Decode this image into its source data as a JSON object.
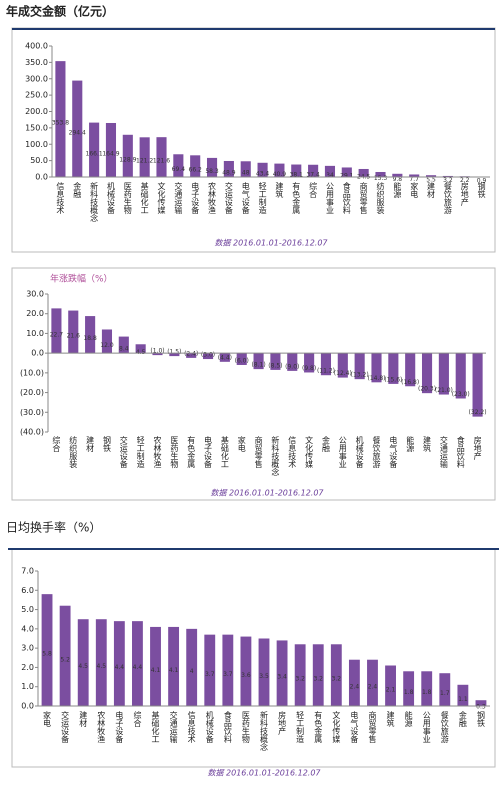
{
  "chart_data": [
    {
      "type": "bar",
      "title": "年成交金额（亿元）",
      "note": "数据 2016.01.01-2016.12.07",
      "color": "#7b4ea0",
      "categories": [
        "信息技术",
        "金融",
        "新科技概念",
        "机械设备",
        "医药生物",
        "基础化工",
        "文化传媒",
        "交通运输",
        "电子设备",
        "农林牧渔",
        "交运设备",
        "电气设备",
        "轻工制造",
        "建筑",
        "有色金属",
        "综合",
        "公用事业",
        "食品饮料",
        "商贸零售",
        "纺织服装",
        "能源",
        "家电",
        "建材",
        "餐饮旅游",
        "房地产",
        "钢铁"
      ],
      "values": [
        353.8,
        294.4,
        166.1,
        164.9,
        128.9,
        121.2,
        121.6,
        69.4,
        66.2,
        58.3,
        48.9,
        48.0,
        43.4,
        40.9,
        38.1,
        37.4,
        34.0,
        29.1,
        24.5,
        15.3,
        9.8,
        7.7,
        5.5,
        3.2,
        2.2,
        0.9
      ],
      "ylim": [
        0,
        400
      ],
      "yticks": [
        {
          "value": 0,
          "label": "0.0"
        },
        {
          "value": 50,
          "label": "50.0"
        },
        {
          "value": 100,
          "label": "100.0"
        },
        {
          "value": 150,
          "label": "150.0"
        },
        {
          "value": 200,
          "label": "200.0"
        },
        {
          "value": 250,
          "label": "250.0"
        },
        {
          "value": 300,
          "label": "300.0"
        },
        {
          "value": 350,
          "label": "350.0"
        },
        {
          "value": 400,
          "label": "400.0"
        }
      ]
    },
    {
      "type": "bar",
      "title": "年涨跌幅（%）",
      "note": "数据 2016.01.01-2016.12.07",
      "color": "#7b4ea0",
      "negative_color": "#e00000",
      "categories": [
        "综合",
        "纺织服装",
        "建材",
        "钢铁",
        "交运设备",
        "轻工制造",
        "农林牧渔",
        "医药生物",
        "有色金属",
        "电子设备",
        "基础化工",
        "家电",
        "商贸零售",
        "新科技概念",
        "信息技术",
        "文化传媒",
        "金融",
        "公用事业",
        "机械设备",
        "餐饮旅游",
        "电气设备",
        "能源",
        "建筑",
        "交通运输",
        "食品饮料",
        "房地产"
      ],
      "values": [
        22.7,
        21.6,
        18.8,
        12.0,
        8.4,
        4.5,
        -1.0,
        -1.5,
        -2.4,
        -3.0,
        -4.4,
        -6.0,
        -8.1,
        -8.5,
        -9.0,
        -9.8,
        -11.2,
        -12.4,
        -13.2,
        -14.8,
        -15.6,
        -16.8,
        -20.3,
        -21.0,
        -23.0,
        -32.2
      ],
      "value_labels": [
        "22.7",
        "21.6",
        "18.8",
        "12.0",
        "8.4",
        "4.5",
        "(1.0)",
        "(1.5)",
        "(2.4)",
        "(3.0)",
        "(4.4)",
        "(6.0)",
        "(8.1)",
        "(8.5)",
        "(9.0)",
        "(9.8)",
        "(11.2)",
        "(12.4)",
        "(13.2)",
        "(14.8)",
        "(15.6)",
        "(16.8)",
        "(20.3)",
        "(21.0)",
        "(23.0)",
        "(32.2)"
      ],
      "ylim": [
        -40,
        30
      ],
      "yticks": [
        {
          "value": 30,
          "label": "30.0"
        },
        {
          "value": 20,
          "label": "20.0"
        },
        {
          "value": 10,
          "label": "10.0"
        },
        {
          "value": 0,
          "label": "0.0"
        },
        {
          "value": -10,
          "label": "(10.0)"
        },
        {
          "value": -20,
          "label": "(20.0)"
        },
        {
          "value": -30,
          "label": "(30.0)"
        },
        {
          "value": -40,
          "label": "(40.0)"
        }
      ]
    },
    {
      "type": "bar",
      "title": "日均换手率（%）",
      "note": "数据 2016.01.01-2016.12.07",
      "color": "#7b4ea0",
      "categories": [
        "家电",
        "交运设备",
        "建材",
        "农林牧渔",
        "电子设备",
        "综合",
        "基础化工",
        "交通运输",
        "信息技术",
        "机械设备",
        "食品饮料",
        "医药生物",
        "新科技概念",
        "房地产",
        "轻工制造",
        "有色金属",
        "文化传媒",
        "电气设备",
        "商贸零售",
        "建筑",
        "能源",
        "公用事业",
        "餐饮旅游",
        "金融",
        "钢铁"
      ],
      "values": [
        5.8,
        5.2,
        4.5,
        4.5,
        4.4,
        4.4,
        4.1,
        4.1,
        4.0,
        3.7,
        3.7,
        3.6,
        3.5,
        3.4,
        3.2,
        3.2,
        3.2,
        2.4,
        2.4,
        2.1,
        1.8,
        1.8,
        1.7,
        1.1,
        0.3
      ],
      "ylim": [
        0,
        7
      ],
      "yticks": [
        {
          "value": 0,
          "label": "0.0"
        },
        {
          "value": 1,
          "label": "1.0"
        },
        {
          "value": 2,
          "label": "2.0"
        },
        {
          "value": 3,
          "label": "3.0"
        },
        {
          "value": 4,
          "label": "4.0"
        },
        {
          "value": 5,
          "label": "5.0"
        },
        {
          "value": 6,
          "label": "6.0"
        },
        {
          "value": 7,
          "label": "7.0"
        }
      ]
    }
  ]
}
